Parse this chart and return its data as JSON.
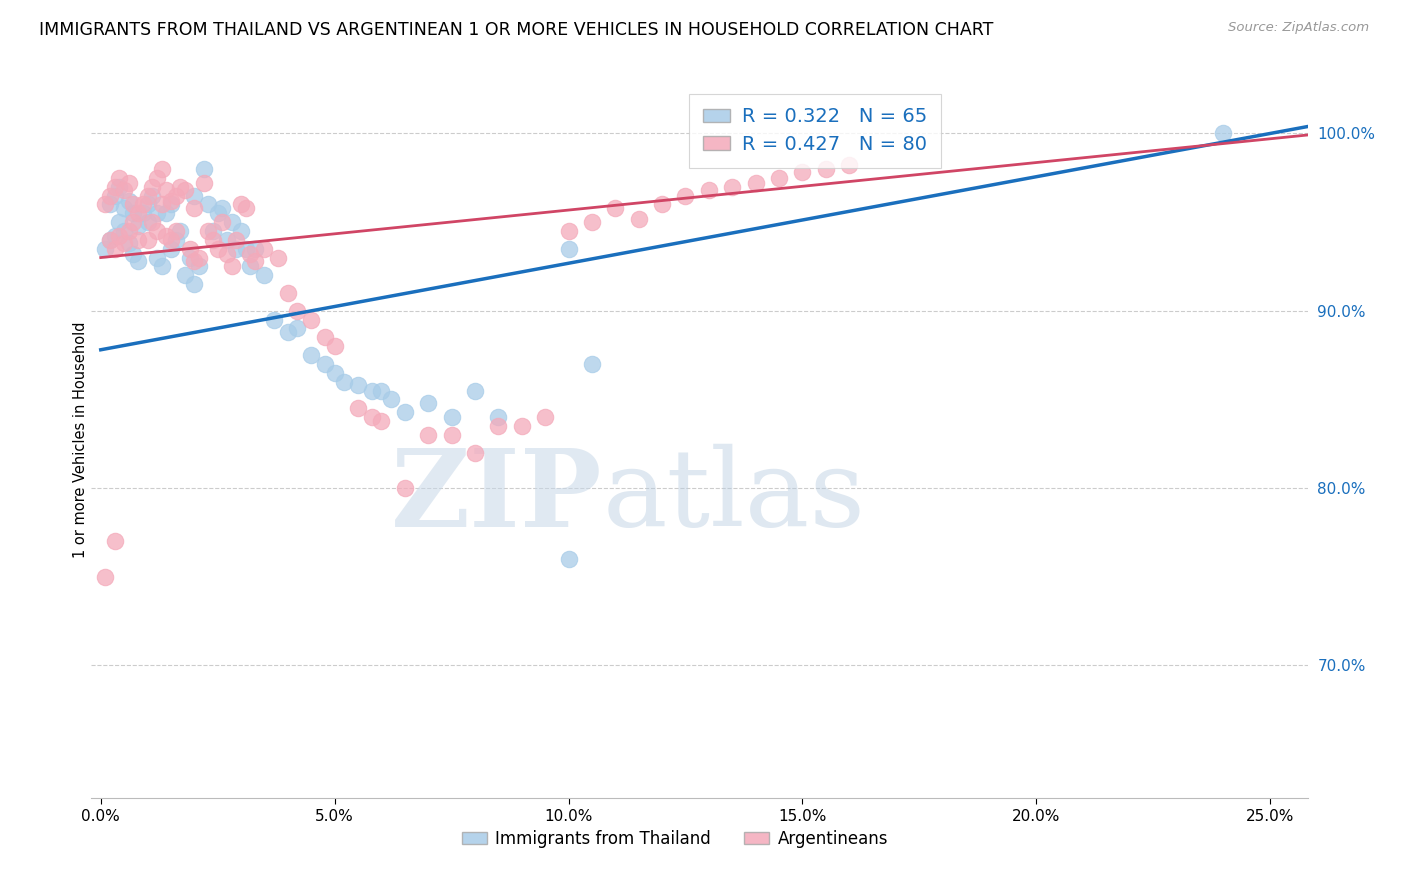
{
  "title": "IMMIGRANTS FROM THAILAND VS ARGENTINEAN 1 OR MORE VEHICLES IN HOUSEHOLD CORRELATION CHART",
  "source": "Source: ZipAtlas.com",
  "ylabel": "1 or more Vehicles in Household",
  "y_min": 0.625,
  "y_max": 1.03,
  "x_min": -0.002,
  "x_max": 0.258,
  "legend_blue_r": "0.322",
  "legend_blue_n": "65",
  "legend_pink_r": "0.427",
  "legend_pink_n": "80",
  "watermark_zip": "ZIP",
  "watermark_atlas": "atlas",
  "blue_color": "#a8cce8",
  "pink_color": "#f4aaba",
  "blue_line_color": "#1a6fbd",
  "pink_line_color": "#d04565",
  "blue_intercept": 0.878,
  "blue_slope": 0.488,
  "pink_intercept": 0.93,
  "pink_slope": 0.268,
  "ytick_positions": [
    0.7,
    0.8,
    0.9,
    1.0
  ],
  "ytick_labels": [
    "70.0%",
    "80.0%",
    "90.0%",
    "100.0%"
  ],
  "xtick_positions": [
    0.0,
    0.05,
    0.1,
    0.15,
    0.2,
    0.25
  ],
  "xtick_labels": [
    "0.0%",
    "5.0%",
    "10.0%",
    "15.0%",
    "20.0%",
    "25.0%"
  ],
  "blue_scatter_x": [
    0.001,
    0.002,
    0.002,
    0.003,
    0.003,
    0.004,
    0.004,
    0.005,
    0.005,
    0.006,
    0.006,
    0.007,
    0.007,
    0.008,
    0.008,
    0.009,
    0.01,
    0.01,
    0.011,
    0.012,
    0.012,
    0.013,
    0.014,
    0.015,
    0.015,
    0.016,
    0.017,
    0.018,
    0.019,
    0.02,
    0.02,
    0.021,
    0.022,
    0.023,
    0.024,
    0.025,
    0.026,
    0.027,
    0.028,
    0.029,
    0.03,
    0.031,
    0.032,
    0.033,
    0.035,
    0.037,
    0.04,
    0.042,
    0.045,
    0.048,
    0.05,
    0.052,
    0.055,
    0.058,
    0.06,
    0.062,
    0.065,
    0.07,
    0.075,
    0.08,
    0.085,
    0.1,
    0.105,
    0.24,
    0.1
  ],
  "blue_scatter_y": [
    0.935,
    0.94,
    0.96,
    0.942,
    0.965,
    0.95,
    0.97,
    0.945,
    0.958,
    0.938,
    0.962,
    0.932,
    0.955,
    0.928,
    0.948,
    0.955,
    0.95,
    0.96,
    0.965,
    0.93,
    0.955,
    0.925,
    0.955,
    0.935,
    0.96,
    0.94,
    0.945,
    0.92,
    0.93,
    0.915,
    0.965,
    0.925,
    0.98,
    0.96,
    0.945,
    0.955,
    0.958,
    0.94,
    0.95,
    0.935,
    0.945,
    0.935,
    0.925,
    0.935,
    0.92,
    0.895,
    0.888,
    0.89,
    0.875,
    0.87,
    0.865,
    0.86,
    0.858,
    0.855,
    0.855,
    0.85,
    0.843,
    0.848,
    0.84,
    0.855,
    0.84,
    0.935,
    0.87,
    1.0,
    0.76
  ],
  "pink_scatter_x": [
    0.001,
    0.001,
    0.002,
    0.002,
    0.003,
    0.003,
    0.004,
    0.004,
    0.005,
    0.005,
    0.006,
    0.006,
    0.007,
    0.007,
    0.008,
    0.008,
    0.009,
    0.01,
    0.01,
    0.011,
    0.011,
    0.012,
    0.012,
    0.013,
    0.013,
    0.014,
    0.014,
    0.015,
    0.015,
    0.016,
    0.016,
    0.017,
    0.018,
    0.019,
    0.02,
    0.02,
    0.021,
    0.022,
    0.023,
    0.024,
    0.025,
    0.026,
    0.027,
    0.028,
    0.029,
    0.03,
    0.031,
    0.032,
    0.033,
    0.035,
    0.038,
    0.04,
    0.042,
    0.045,
    0.048,
    0.05,
    0.055,
    0.058,
    0.06,
    0.065,
    0.07,
    0.075,
    0.08,
    0.085,
    0.09,
    0.095,
    0.1,
    0.105,
    0.11,
    0.115,
    0.12,
    0.125,
    0.13,
    0.135,
    0.14,
    0.145,
    0.15,
    0.155,
    0.16,
    0.003
  ],
  "pink_scatter_y": [
    0.75,
    0.96,
    0.94,
    0.965,
    0.935,
    0.97,
    0.942,
    0.975,
    0.938,
    0.968,
    0.945,
    0.972,
    0.95,
    0.96,
    0.955,
    0.94,
    0.96,
    0.965,
    0.94,
    0.97,
    0.95,
    0.975,
    0.945,
    0.98,
    0.96,
    0.942,
    0.968,
    0.94,
    0.962,
    0.965,
    0.945,
    0.97,
    0.968,
    0.935,
    0.928,
    0.958,
    0.93,
    0.972,
    0.945,
    0.94,
    0.935,
    0.95,
    0.932,
    0.925,
    0.94,
    0.96,
    0.958,
    0.932,
    0.928,
    0.935,
    0.93,
    0.91,
    0.9,
    0.895,
    0.885,
    0.88,
    0.845,
    0.84,
    0.838,
    0.8,
    0.83,
    0.83,
    0.82,
    0.835,
    0.835,
    0.84,
    0.945,
    0.95,
    0.958,
    0.952,
    0.96,
    0.965,
    0.968,
    0.97,
    0.972,
    0.975,
    0.978,
    0.98,
    0.982,
    0.77
  ]
}
